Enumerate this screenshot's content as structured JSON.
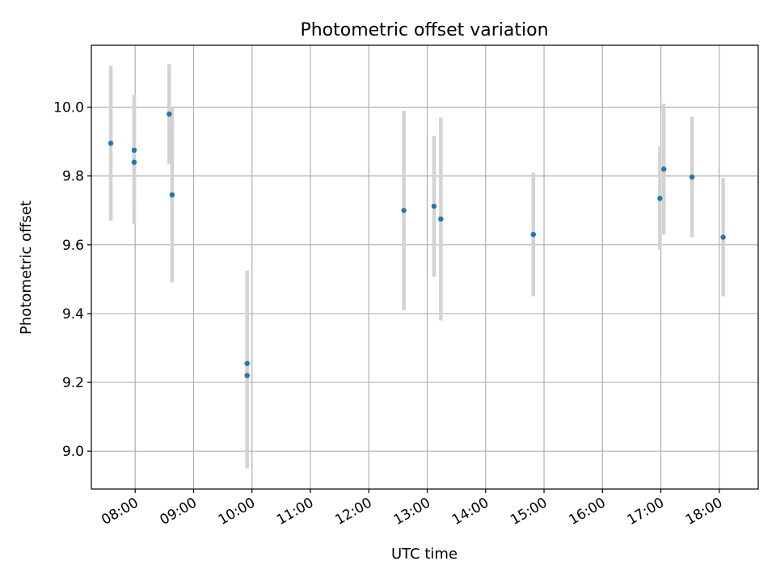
{
  "chart_data": {
    "type": "scatter",
    "title": "Photometric offset variation",
    "xlabel": "UTC time",
    "ylabel": "Photometric offset",
    "x_ticks": [
      "08:00",
      "09:00",
      "10:00",
      "11:00",
      "12:00",
      "13:00",
      "14:00",
      "15:00",
      "16:00",
      "17:00",
      "18:00"
    ],
    "y_ticks": [
      "9.0",
      "9.2",
      "9.4",
      "9.6",
      "9.8",
      "10.0"
    ],
    "xlim": [
      "07:15",
      "18:40"
    ],
    "ylim": [
      8.89,
      10.18
    ],
    "grid": true,
    "colors": {
      "point": "#1f77b4",
      "errorbar": "#d3d3d3",
      "grid": "#b0b0b0"
    },
    "points": [
      {
        "x": "07:35",
        "y": 9.895,
        "yerr": 0.225
      },
      {
        "x": "07:59",
        "y": 9.875,
        "yerr": 0.16
      },
      {
        "x": "07:59",
        "y": 9.84,
        "yerr": 0.18
      },
      {
        "x": "08:35",
        "y": 9.98,
        "yerr": 0.145
      },
      {
        "x": "08:38",
        "y": 9.745,
        "yerr": 0.255
      },
      {
        "x": "09:55",
        "y": 9.255,
        "yerr": 0.27
      },
      {
        "x": "09:55",
        "y": 9.22,
        "yerr": 0.27
      },
      {
        "x": "12:36",
        "y": 9.7,
        "yerr": 0.29
      },
      {
        "x": "13:07",
        "y": 9.712,
        "yerr": 0.205
      },
      {
        "x": "13:14",
        "y": 9.675,
        "yerr": 0.295
      },
      {
        "x": "14:49",
        "y": 9.63,
        "yerr": 0.18
      },
      {
        "x": "16:59",
        "y": 9.735,
        "yerr": 0.15
      },
      {
        "x": "17:03",
        "y": 9.82,
        "yerr": 0.19
      },
      {
        "x": "17:32",
        "y": 9.797,
        "yerr": 0.175
      },
      {
        "x": "18:04",
        "y": 9.622,
        "yerr": 0.172
      }
    ]
  }
}
